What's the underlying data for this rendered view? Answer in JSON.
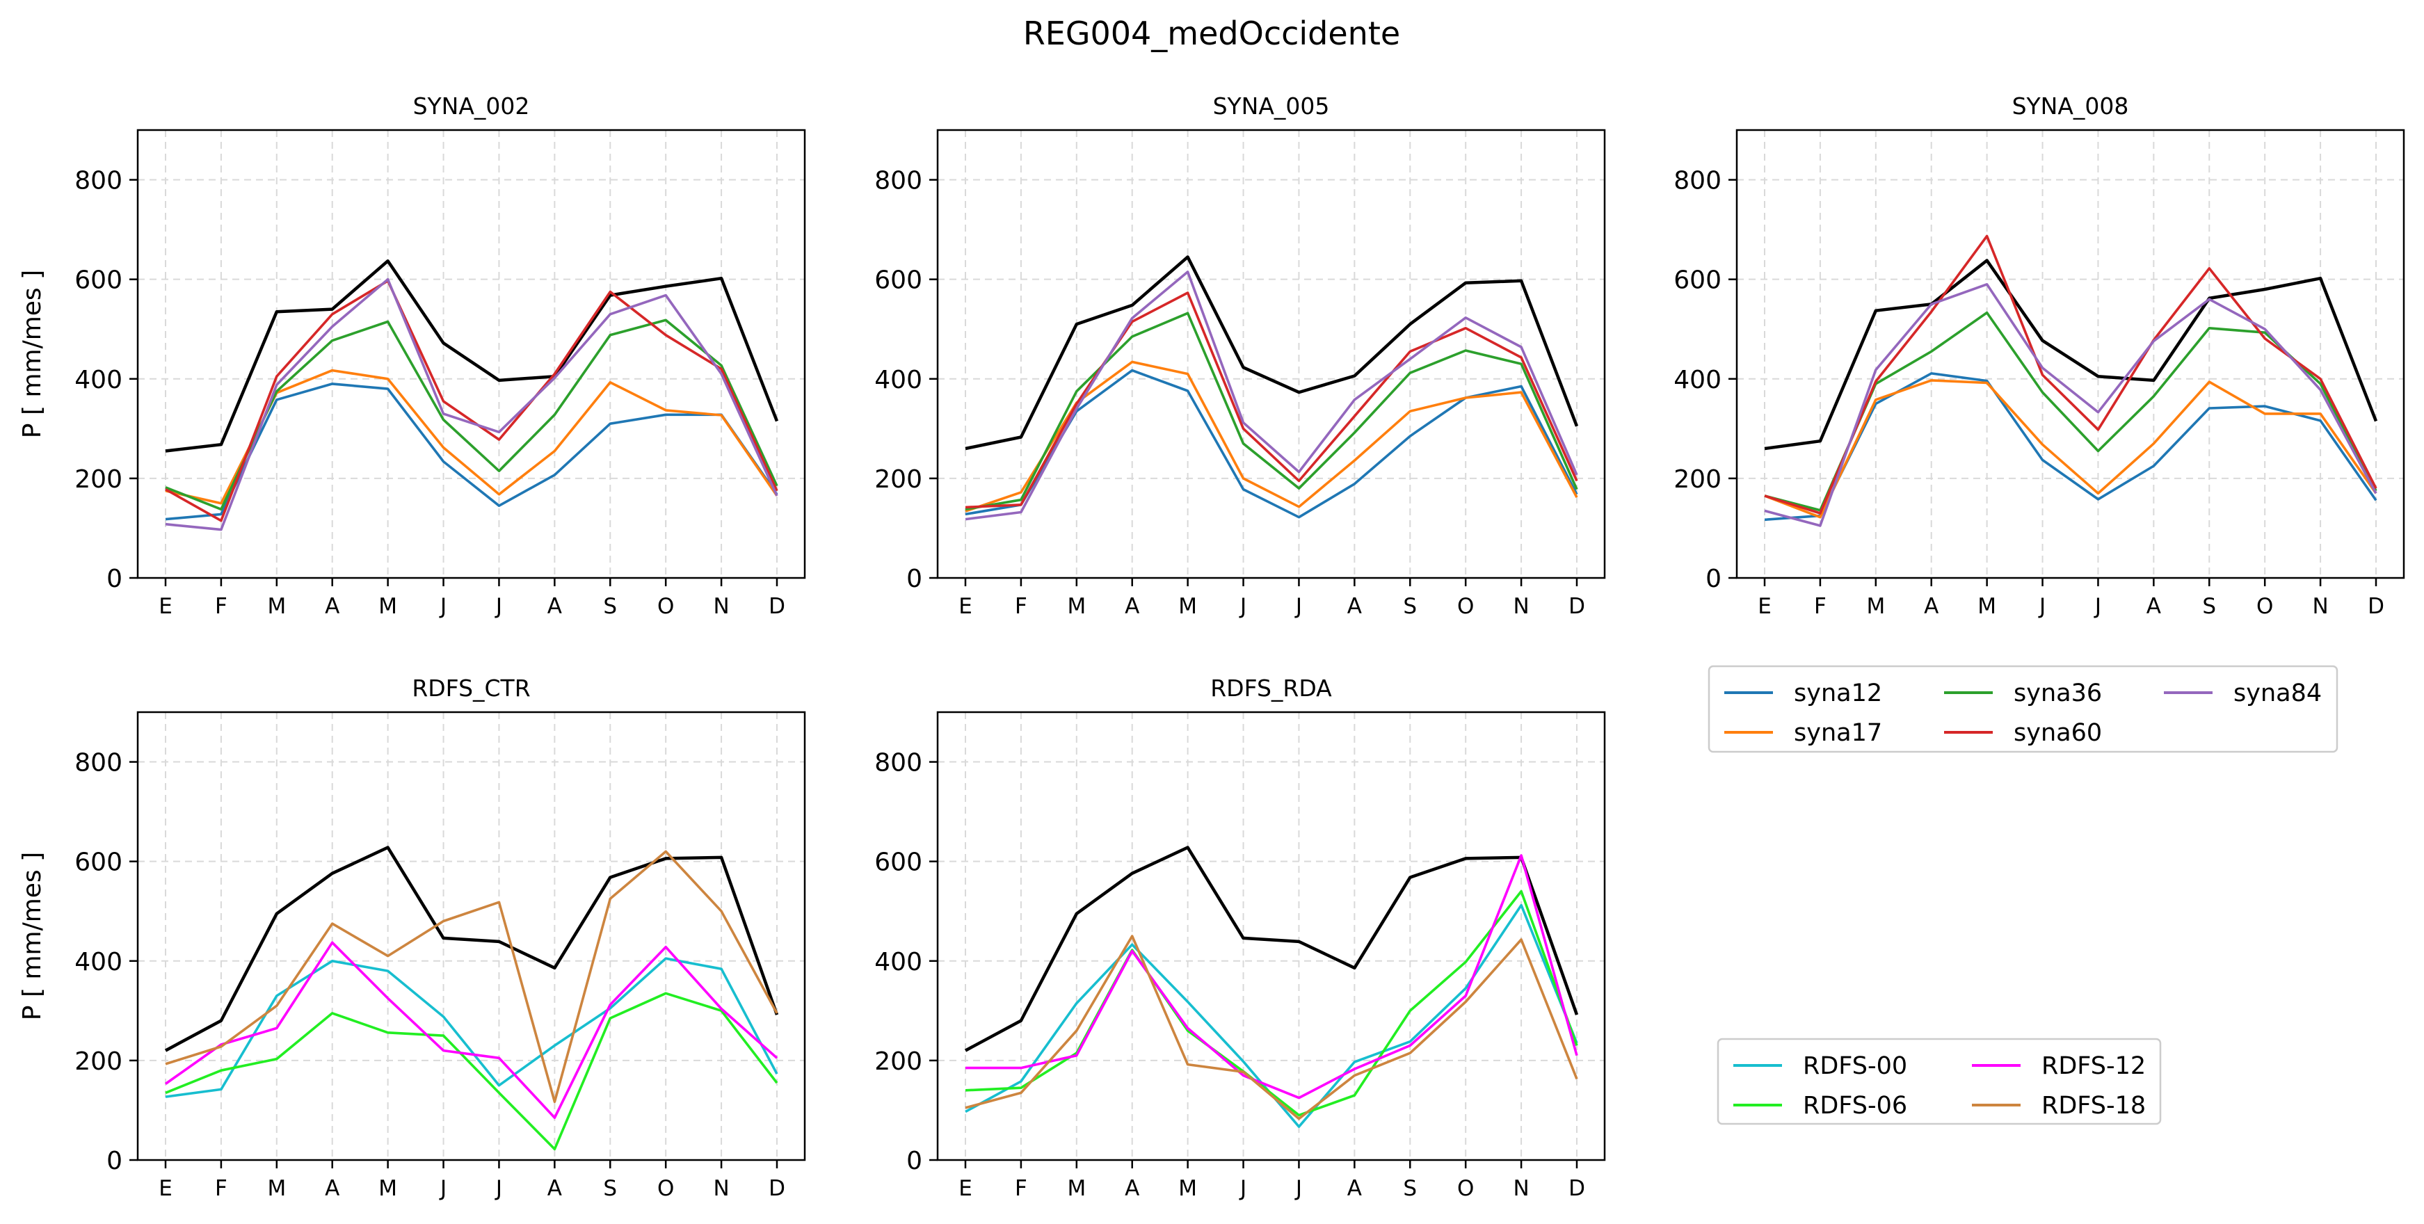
{
  "figure": {
    "title": "REG004_medOccidente",
    "ylabel": "P [ mm/mes ]",
    "months": [
      "E",
      "F",
      "M",
      "A",
      "M",
      "J",
      "J",
      "A",
      "S",
      "O",
      "N",
      "D"
    ],
    "yticks": [
      "0",
      "200",
      "400",
      "600",
      "800"
    ],
    "ylim": [
      0,
      900
    ]
  },
  "legends": {
    "syna": {
      "entries": [
        {
          "label": "syna12",
          "color": "#1f77b4"
        },
        {
          "label": "syna17",
          "color": "#ff7f0e"
        },
        {
          "label": "syna36",
          "color": "#2ca02c"
        },
        {
          "label": "syna60",
          "color": "#d62728"
        },
        {
          "label": "syna84",
          "color": "#9467bd"
        }
      ]
    },
    "rdfs": {
      "entries": [
        {
          "label": "RDFS-00",
          "color": "#17becf"
        },
        {
          "label": "RDFS-06",
          "color": "#22ee22"
        },
        {
          "label": "RDFS-12",
          "color": "#ff00ff"
        },
        {
          "label": "RDFS-18",
          "color": "#cd853f"
        }
      ]
    }
  },
  "chart_data": [
    {
      "type": "line",
      "title": "SYNA_002",
      "categories": [
        "E",
        "F",
        "M",
        "A",
        "M",
        "J",
        "J",
        "A",
        "S",
        "O",
        "N",
        "D"
      ],
      "ylim": [
        0,
        900
      ],
      "grid": true,
      "series": [
        {
          "color": "#000000",
          "values": [
            255,
            268,
            535,
            540,
            637,
            472,
            397,
            405,
            568,
            586,
            602,
            315
          ]
        },
        {
          "name": "syna12",
          "color": "#1f77b4",
          "values": [
            118,
            128,
            358,
            390,
            380,
            234,
            145,
            207,
            310,
            328,
            328,
            168
          ]
        },
        {
          "name": "syna17",
          "color": "#ff7f0e",
          "values": [
            175,
            150,
            372,
            417,
            400,
            262,
            168,
            255,
            393,
            337,
            327,
            165
          ]
        },
        {
          "name": "syna36",
          "color": "#2ca02c",
          "values": [
            182,
            138,
            375,
            477,
            515,
            318,
            215,
            328,
            488,
            518,
            427,
            185
          ]
        },
        {
          "name": "syna60",
          "color": "#d62728",
          "values": [
            178,
            115,
            405,
            530,
            597,
            355,
            278,
            410,
            575,
            488,
            420,
            175
          ]
        },
        {
          "name": "syna84",
          "color": "#9467bd",
          "values": [
            108,
            97,
            388,
            505,
            600,
            330,
            293,
            402,
            530,
            568,
            410,
            165
          ]
        }
      ]
    },
    {
      "type": "line",
      "title": "SYNA_005",
      "categories": [
        "E",
        "F",
        "M",
        "A",
        "M",
        "J",
        "J",
        "A",
        "S",
        "O",
        "N",
        "D"
      ],
      "ylim": [
        0,
        900
      ],
      "grid": true,
      "series": [
        {
          "color": "#000000",
          "values": [
            260,
            283,
            510,
            548,
            645,
            423,
            373,
            406,
            510,
            593,
            597,
            305
          ]
        },
        {
          "name": "syna12",
          "color": "#1f77b4",
          "values": [
            128,
            147,
            335,
            417,
            376,
            178,
            122,
            189,
            285,
            362,
            385,
            168
          ]
        },
        {
          "name": "syna17",
          "color": "#ff7f0e",
          "values": [
            134,
            172,
            352,
            434,
            410,
            200,
            143,
            236,
            335,
            362,
            373,
            162
          ]
        },
        {
          "name": "syna36",
          "color": "#2ca02c",
          "values": [
            138,
            157,
            375,
            485,
            532,
            270,
            180,
            292,
            412,
            457,
            430,
            178
          ]
        },
        {
          "name": "syna60",
          "color": "#d62728",
          "values": [
            142,
            147,
            350,
            515,
            573,
            300,
            195,
            325,
            455,
            502,
            443,
            195
          ]
        },
        {
          "name": "syna84",
          "color": "#9467bd",
          "values": [
            118,
            132,
            340,
            522,
            615,
            312,
            213,
            358,
            440,
            523,
            464,
            207
          ]
        }
      ]
    },
    {
      "type": "line",
      "title": "SYNA_008",
      "categories": [
        "E",
        "F",
        "M",
        "A",
        "M",
        "J",
        "J",
        "A",
        "S",
        "O",
        "N",
        "D"
      ],
      "ylim": [
        0,
        900
      ],
      "grid": true,
      "series": [
        {
          "color": "#000000",
          "values": [
            260,
            275,
            537,
            550,
            638,
            477,
            405,
            397,
            562,
            580,
            602,
            315
          ]
        },
        {
          "name": "syna12",
          "color": "#1f77b4",
          "values": [
            117,
            125,
            350,
            411,
            396,
            237,
            158,
            225,
            341,
            345,
            316,
            156
          ]
        },
        {
          "name": "syna17",
          "color": "#ff7f0e",
          "values": [
            165,
            122,
            358,
            397,
            392,
            268,
            170,
            270,
            394,
            330,
            330,
            170
          ]
        },
        {
          "name": "syna36",
          "color": "#2ca02c",
          "values": [
            165,
            136,
            390,
            455,
            533,
            373,
            255,
            365,
            502,
            493,
            390,
            175
          ]
        },
        {
          "name": "syna60",
          "color": "#d62728",
          "values": [
            165,
            130,
            395,
            535,
            687,
            408,
            298,
            478,
            622,
            481,
            400,
            180
          ]
        },
        {
          "name": "syna84",
          "color": "#9467bd",
          "values": [
            135,
            105,
            418,
            550,
            590,
            422,
            333,
            476,
            560,
            500,
            378,
            170
          ]
        }
      ]
    },
    {
      "type": "line",
      "title": "RDFS_CTR",
      "categories": [
        "E",
        "F",
        "M",
        "A",
        "M",
        "J",
        "J",
        "A",
        "S",
        "O",
        "N",
        "D"
      ],
      "ylim": [
        0,
        900
      ],
      "grid": true,
      "series": [
        {
          "color": "#000000",
          "values": [
            220,
            280,
            495,
            576,
            628,
            446,
            439,
            386,
            568,
            606,
            608,
            292
          ]
        },
        {
          "name": "RDFS-00",
          "color": "#17becf",
          "values": [
            127,
            142,
            330,
            400,
            380,
            288,
            150,
            230,
            305,
            405,
            384,
            173
          ]
        },
        {
          "name": "RDFS-06",
          "color": "#22ee22",
          "values": [
            135,
            180,
            203,
            295,
            256,
            250,
            135,
            22,
            285,
            335,
            300,
            155
          ]
        },
        {
          "name": "RDFS-12",
          "color": "#ff00ff",
          "values": [
            153,
            232,
            265,
            437,
            325,
            220,
            205,
            85,
            312,
            428,
            304,
            205
          ]
        },
        {
          "name": "RDFS-18",
          "color": "#cd853f",
          "values": [
            193,
            228,
            310,
            475,
            410,
            480,
            518,
            117,
            525,
            620,
            500,
            295
          ]
        }
      ]
    },
    {
      "type": "line",
      "title": "RDFS_RDA",
      "categories": [
        "E",
        "F",
        "M",
        "A",
        "M",
        "J",
        "J",
        "A",
        "S",
        "O",
        "N",
        "D"
      ],
      "ylim": [
        0,
        900
      ],
      "grid": true,
      "series": [
        {
          "color": "#000000",
          "values": [
            220,
            280,
            495,
            576,
            628,
            446,
            439,
            386,
            568,
            606,
            608,
            292
          ]
        },
        {
          "name": "RDFS-00",
          "color": "#17becf",
          "values": [
            97,
            158,
            315,
            433,
            318,
            198,
            67,
            197,
            238,
            345,
            512,
            235
          ]
        },
        {
          "name": "RDFS-06",
          "color": "#22ee22",
          "values": [
            140,
            145,
            215,
            422,
            260,
            178,
            90,
            130,
            300,
            398,
            540,
            230
          ]
        },
        {
          "name": "RDFS-12",
          "color": "#ff00ff",
          "values": [
            185,
            185,
            210,
            420,
            265,
            170,
            125,
            183,
            230,
            330,
            612,
            210
          ]
        },
        {
          "name": "RDFS-18",
          "color": "#cd853f",
          "values": [
            105,
            135,
            260,
            450,
            192,
            177,
            83,
            170,
            215,
            318,
            443,
            163
          ]
        }
      ]
    }
  ]
}
